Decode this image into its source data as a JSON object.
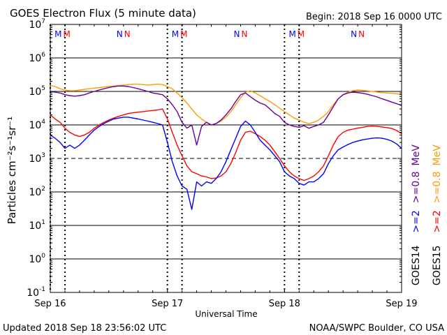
{
  "header": {
    "title": "GOES Electron Flux (5 minute data)",
    "begin": "Begin: 2018 Sep 16 0000 UTC"
  },
  "footer": {
    "updated": "Updated 2018 Sep 18 23:56:02 UTC",
    "source": "NOAA/SWPC Boulder, CO USA"
  },
  "chart_data": {
    "type": "line",
    "title": "GOES Electron Flux (5 minute data)",
    "xlabel": "Universal Time",
    "ylabel": "Particles cm⁻²s⁻¹sr⁻¹",
    "yscale": "log",
    "xlim": [
      0,
      72
    ],
    "x_unit": "hours since 2018 Sep 16 0000 UTC",
    "ylim": [
      0.1,
      10000000
    ],
    "x_ticks": [
      {
        "x": 0,
        "label": "Sep 16"
      },
      {
        "x": 24,
        "label": "Sep 17"
      },
      {
        "x": 48,
        "label": "Sep 18"
      },
      {
        "x": 72,
        "label": "Sep 19"
      }
    ],
    "y_ticks": [
      {
        "base": "10",
        "exp": "7",
        "value": 10000000
      },
      {
        "base": "10",
        "exp": "6",
        "value": 1000000
      },
      {
        "base": "10",
        "exp": "5",
        "value": 100000
      },
      {
        "base": "10",
        "exp": "4",
        "value": 10000
      },
      {
        "base": "10",
        "exp": "3",
        "value": 1000
      },
      {
        "base": "10",
        "exp": "2",
        "value": 100
      },
      {
        "base": "10",
        "exp": "1",
        "value": 10
      },
      {
        "base": "10",
        "exp": "0",
        "value": 1
      },
      {
        "base": "10",
        "exp": "-1",
        "value": 0.1
      }
    ],
    "threshold": {
      "value": 1000,
      "style": "dashed"
    },
    "grid": "horizontal",
    "local_time_markers": [
      {
        "x": 2.5,
        "letters": [
          {
            "text": "M",
            "color": "#0000ff"
          },
          {
            "text": "M",
            "color": "#ff0000"
          }
        ]
      },
      {
        "x": 15,
        "letters": [
          {
            "text": "N",
            "color": "#0000ff"
          },
          {
            "text": "N",
            "color": "#ff0000"
          }
        ]
      },
      {
        "x": 26.5,
        "letters": [
          {
            "text": "M",
            "color": "#0000ff"
          },
          {
            "text": "M",
            "color": "#ff0000"
          }
        ]
      },
      {
        "x": 39,
        "letters": [
          {
            "text": "N",
            "color": "#0000ff"
          },
          {
            "text": "N",
            "color": "#ff0000"
          }
        ]
      },
      {
        "x": 50.5,
        "letters": [
          {
            "text": "M",
            "color": "#0000ff"
          },
          {
            "text": "M",
            "color": "#ff0000"
          }
        ]
      },
      {
        "x": 63,
        "letters": [
          {
            "text": "N",
            "color": "#0000ff"
          },
          {
            "text": "N",
            "color": "#ff0000"
          }
        ]
      }
    ],
    "dotted_verticals": [
      0,
      3,
      24,
      27,
      48,
      51
    ],
    "legend": {
      "placement": "right",
      "groups": [
        {
          "label": "GOES14",
          "entries": [
            {
              "text": ">=2",
              "color": "#0000ff"
            },
            {
              "text": ">=0.8",
              "color": "#660099"
            },
            {
              "text": "MeV",
              "color": "#660099"
            }
          ]
        },
        {
          "label": "GOES15",
          "entries": [
            {
              "text": ">=2",
              "color": "#ff0000"
            },
            {
              "text": ">=0.8",
              "color": "#ff9900"
            },
            {
              "text": "MeV",
              "color": "#ff9900"
            }
          ]
        }
      ]
    },
    "series": [
      {
        "name": "GOES15 >=0.8 MeV",
        "color": "#ff9900",
        "x": [
          0,
          1,
          2,
          3,
          4,
          5,
          6,
          7,
          8,
          9,
          10,
          11,
          12,
          13,
          14,
          15,
          16,
          17,
          18,
          19,
          20,
          21,
          22,
          23,
          24,
          25,
          26,
          27,
          28,
          29,
          30,
          31,
          32,
          33,
          34,
          35,
          36,
          37,
          38,
          39,
          40,
          41,
          42,
          43,
          44,
          45,
          46,
          47,
          48,
          49,
          50,
          51,
          52,
          53,
          54,
          55,
          56,
          57,
          58,
          59,
          60,
          61,
          62,
          63,
          64,
          65,
          66,
          67,
          68,
          69,
          70,
          71,
          72
        ],
        "y": [
          150000,
          140000,
          120000,
          110000,
          105000,
          105000,
          110000,
          115000,
          120000,
          125000,
          130000,
          135000,
          140000,
          145000,
          150000,
          155000,
          160000,
          165000,
          165000,
          160000,
          155000,
          160000,
          165000,
          160000,
          140000,
          120000,
          90000,
          65000,
          45000,
          30000,
          20000,
          15000,
          12000,
          10000,
          11000,
          13000,
          17000,
          25000,
          40000,
          65000,
          95000,
          105000,
          90000,
          75000,
          60000,
          50000,
          40000,
          32000,
          25000,
          20000,
          16000,
          14000,
          12000,
          11000,
          12000,
          14000,
          18000,
          25000,
          40000,
          60000,
          80000,
          95000,
          105000,
          110000,
          108000,
          104000,
          100000,
          96000,
          92000,
          90000,
          88000,
          85000,
          80000
        ]
      },
      {
        "name": "GOES14 >=0.8 MeV",
        "color": "#660099",
        "x": [
          0,
          1,
          2,
          3,
          4,
          5,
          6,
          7,
          8,
          9,
          10,
          11,
          12,
          13,
          14,
          15,
          16,
          17,
          18,
          19,
          20,
          21,
          22,
          23,
          24,
          25,
          26,
          27,
          28,
          29,
          30,
          31,
          32,
          33,
          34,
          35,
          36,
          37,
          38,
          39,
          40,
          41,
          42,
          43,
          44,
          45,
          46,
          47,
          48,
          49,
          50,
          51,
          52,
          53,
          54,
          55,
          56,
          57,
          58,
          59,
          60,
          61,
          62,
          63,
          64,
          65,
          66,
          67,
          68,
          69,
          70,
          71,
          72
        ],
        "y": [
          100000,
          95000,
          90000,
          80000,
          75000,
          72000,
          75000,
          80000,
          90000,
          100000,
          110000,
          120000,
          130000,
          140000,
          145000,
          145000,
          140000,
          130000,
          120000,
          110000,
          100000,
          90000,
          85000,
          80000,
          60000,
          40000,
          25000,
          12000,
          8000,
          10000,
          2500,
          9000,
          12000,
          10000,
          11000,
          14000,
          20000,
          30000,
          50000,
          80000,
          90000,
          70000,
          55000,
          45000,
          40000,
          30000,
          22000,
          18000,
          12000,
          10000,
          9000,
          8500,
          9500,
          8000,
          9000,
          10000,
          12000,
          20000,
          35000,
          60000,
          80000,
          90000,
          95000,
          92000,
          88000,
          82000,
          75000,
          68000,
          60000,
          54000,
          48000,
          43000,
          38000
        ]
      },
      {
        "name": "GOES15 >=2 MeV",
        "color": "#ff0000",
        "x": [
          0,
          1,
          2,
          3,
          4,
          5,
          6,
          7,
          8,
          9,
          10,
          11,
          12,
          13,
          14,
          15,
          16,
          17,
          18,
          19,
          20,
          21,
          22,
          23,
          24,
          25,
          26,
          27,
          28,
          29,
          30,
          31,
          32,
          33,
          34,
          35,
          36,
          37,
          38,
          39,
          40,
          41,
          42,
          43,
          44,
          45,
          46,
          47,
          48,
          49,
          50,
          51,
          52,
          53,
          54,
          55,
          56,
          57,
          58,
          59,
          60,
          61,
          62,
          63,
          64,
          65,
          66,
          67,
          68,
          69,
          70,
          71,
          72
        ],
        "y": [
          20000,
          15000,
          12000,
          8000,
          6000,
          5000,
          4500,
          5000,
          6000,
          8000,
          10000,
          12000,
          14000,
          16000,
          18000,
          20000,
          22000,
          23000,
          24000,
          25000,
          26000,
          27000,
          28000,
          30000,
          15000,
          6000,
          2500,
          1200,
          600,
          400,
          350,
          300,
          280,
          250,
          260,
          300,
          400,
          700,
          1500,
          3500,
          6000,
          6500,
          5500,
          4500,
          3500,
          2500,
          1600,
          1000,
          600,
          400,
          300,
          250,
          220,
          250,
          300,
          400,
          600,
          1200,
          2500,
          4500,
          6000,
          7000,
          7500,
          8000,
          8500,
          9000,
          9200,
          9000,
          8700,
          8300,
          7800,
          6800,
          5500
        ]
      },
      {
        "name": "GOES14 >=2 MeV",
        "color": "#0000ff",
        "x": [
          0,
          1,
          2,
          3,
          4,
          5,
          6,
          7,
          8,
          9,
          10,
          11,
          12,
          13,
          14,
          15,
          16,
          17,
          18,
          19,
          20,
          21,
          22,
          23,
          24,
          25,
          26,
          27,
          28,
          29,
          30,
          31,
          32,
          33,
          34,
          35,
          36,
          37,
          38,
          39,
          40,
          41,
          42,
          43,
          44,
          45,
          46,
          47,
          48,
          49,
          50,
          51,
          52,
          53,
          54,
          55,
          56,
          57,
          58,
          59,
          60,
          61,
          62,
          63,
          64,
          65,
          66,
          67,
          68,
          69,
          70,
          71,
          72
        ],
        "y": [
          5000,
          4000,
          3000,
          2000,
          2500,
          2000,
          2500,
          3500,
          5000,
          7000,
          9000,
          11000,
          13000,
          15000,
          16000,
          17000,
          17000,
          16000,
          15000,
          14000,
          13000,
          12000,
          11000,
          10000,
          3000,
          800,
          300,
          150,
          120,
          30,
          200,
          150,
          200,
          180,
          250,
          400,
          800,
          1800,
          4000,
          9000,
          13000,
          10000,
          6000,
          3500,
          2500,
          1800,
          1200,
          800,
          400,
          300,
          250,
          180,
          160,
          200,
          200,
          250,
          350,
          700,
          1200,
          1800,
          2200,
          2600,
          3000,
          3300,
          3600,
          3800,
          4000,
          4100,
          4000,
          3700,
          3300,
          2700,
          2000
        ]
      }
    ]
  }
}
